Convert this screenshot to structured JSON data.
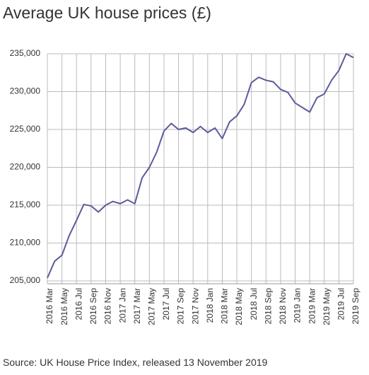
{
  "chart_data": {
    "type": "line",
    "title": "Average UK house prices (£)",
    "source": "Source: UK House Price Index, released 13 November 2019",
    "categories": [
      "2016 Mar",
      null,
      "2016 May",
      null,
      "2016 Jul",
      null,
      "2016 Sep",
      null,
      "2016 Nov",
      null,
      "2017 Jan",
      null,
      "2017 Mar",
      null,
      "2017 May",
      null,
      "2017 Jul",
      null,
      "2017 Sep",
      null,
      "2017 Nov",
      null,
      "2018 Jan",
      null,
      "2018 Mar",
      null,
      "2018 May",
      null,
      "2018 Jul",
      null,
      "2018 Sep",
      null,
      "2018 Nov",
      null,
      "2019 Jan",
      null,
      "2019 Mar",
      null,
      "2019 May",
      null,
      "2019 Jul",
      null,
      "2019 Sep"
    ],
    "series": [
      {
        "name": "Average UK house price",
        "color": "#5b5b9c",
        "values": [
          205400,
          207600,
          208400,
          211000,
          213000,
          215100,
          214900,
          214100,
          215000,
          215500,
          215200,
          215700,
          215200,
          218600,
          220000,
          222000,
          224800,
          225800,
          225000,
          225200,
          224600,
          225400,
          224600,
          225200,
          223800,
          226000,
          226800,
          228300,
          231200,
          231900,
          231500,
          231300,
          230300,
          229900,
          228500,
          227900,
          227300,
          229200,
          229700,
          231500,
          232800,
          235000,
          234500
        ]
      }
    ],
    "ylim": [
      205000,
      235000
    ],
    "yticks": [
      {
        "value": 205000,
        "label": "205,000"
      },
      {
        "value": 210000,
        "label": "210,000"
      },
      {
        "value": 215000,
        "label": "215,000"
      },
      {
        "value": 220000,
        "label": "220,000"
      },
      {
        "value": 225000,
        "label": "225,000"
      },
      {
        "value": 230000,
        "label": "230,000"
      },
      {
        "value": 235000,
        "label": "235,000"
      }
    ],
    "grid": true
  }
}
